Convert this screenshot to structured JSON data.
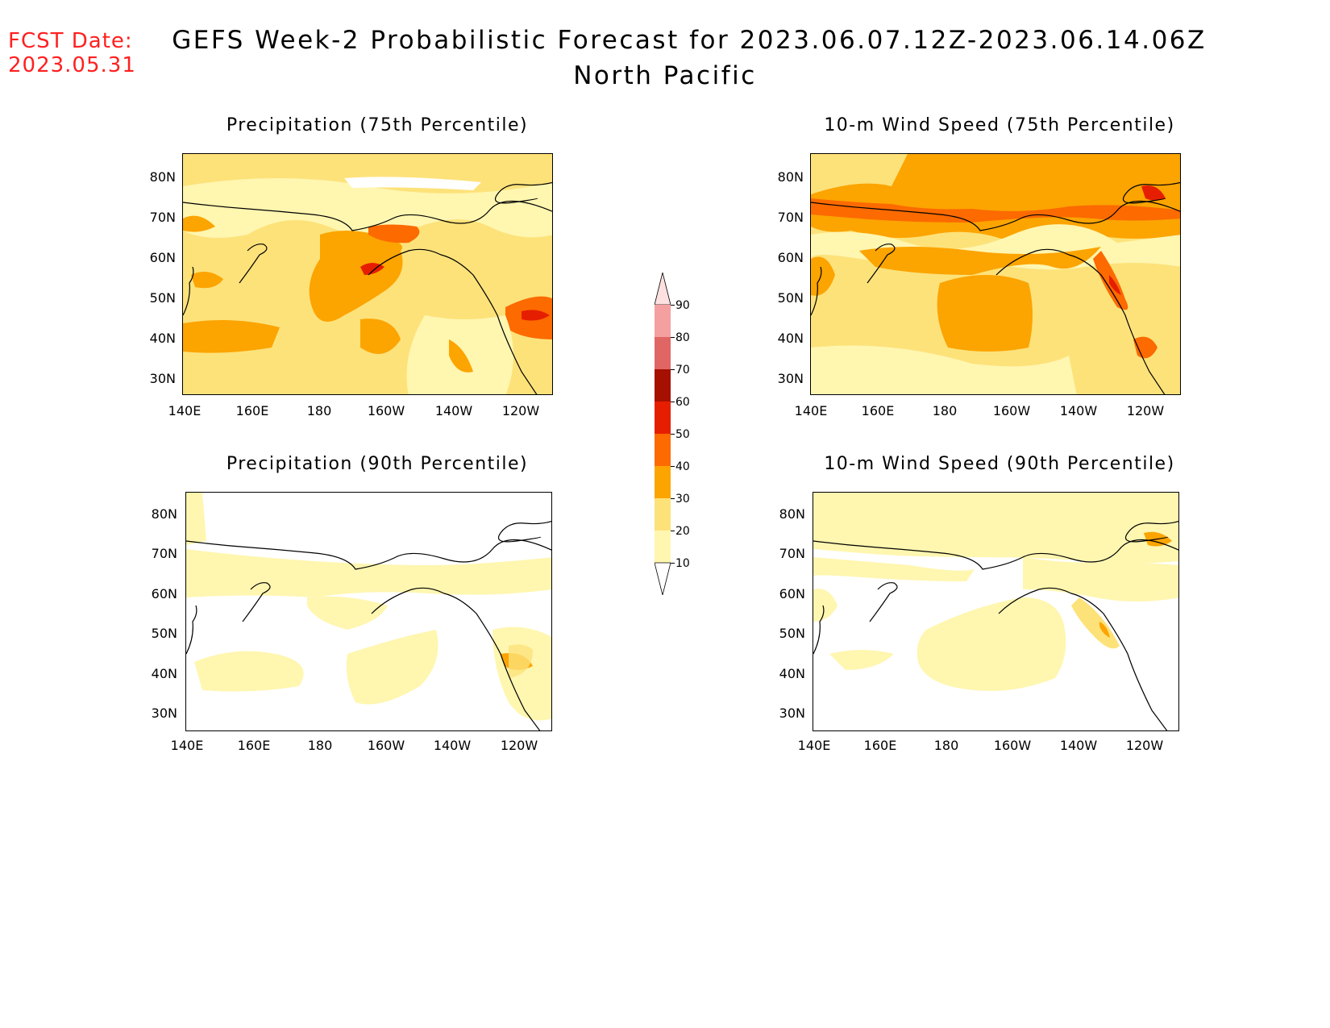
{
  "header": {
    "fcst_label": "FCST Date:",
    "fcst_date": "2023.05.31",
    "title_line1": "GEFS Week-2 Probabilistic Forecast for 2023.06.07.12Z-2023.06.14.06Z",
    "title_line2": "North Pacific"
  },
  "panels": [
    {
      "title": "Precipitation (75th Percentile)"
    },
    {
      "title": "10-m Wind Speed (75th Percentile)"
    },
    {
      "title": "Precipitation (90th Percentile)"
    },
    {
      "title": "10-m Wind Speed (90th Percentile)"
    }
  ],
  "axes": {
    "lat_labels": [
      "80N",
      "70N",
      "60N",
      "50N",
      "40N",
      "30N"
    ],
    "lon_labels": [
      "140E",
      "160E",
      "180",
      "160W",
      "140W",
      "120W"
    ]
  },
  "colorbar": {
    "levels": [
      "10",
      "20",
      "30",
      "40",
      "50",
      "60",
      "70",
      "80",
      "90"
    ],
    "colors": [
      "#fff6b0",
      "#fde27a",
      "#fca400",
      "#fc6a00",
      "#e61e00",
      "#a51000",
      "#e06666",
      "#f4a0a0",
      "#fde0e0"
    ]
  }
}
